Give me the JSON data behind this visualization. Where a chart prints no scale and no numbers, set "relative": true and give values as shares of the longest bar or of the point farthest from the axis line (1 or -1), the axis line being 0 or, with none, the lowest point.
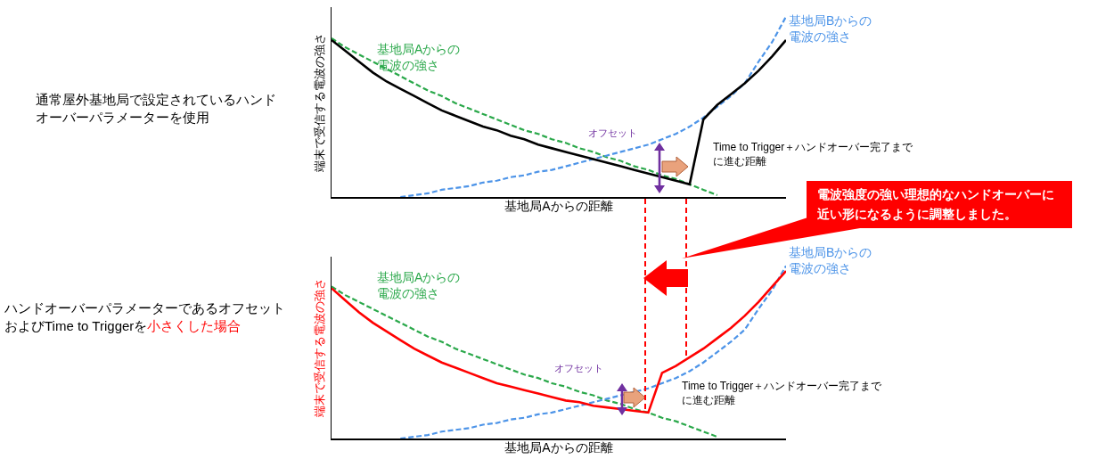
{
  "chart_data": [
    {
      "type": "line",
      "relative": true,
      "xlabel": "基地局Aからの距離",
      "ylabel": "端末で受信する電波の強さ",
      "categories": [
        null,
        null,
        null,
        null,
        null,
        null,
        null,
        null,
        null,
        null,
        null,
        null,
        null,
        null,
        null,
        null,
        null,
        null,
        null,
        null,
        null,
        null,
        null,
        null,
        null,
        null,
        null,
        null,
        null,
        null,
        null,
        null,
        null,
        null
      ],
      "annotations": [
        "通常屋外基地局で設定されているハンドオーバーパラメーターを使用",
        "オフセット",
        "Time to Trigger＋ハンドオーバー完了までに進む距離",
        "電波強度の強い理想的なハンドオーバーに近い形になるように調整しました。"
      ],
      "series": [
        {
          "name": "基地局Aからの電波の強さ",
          "color": "#2aa84a",
          "line_style": "dashed",
          "values": [
            0.88,
            0.83,
            0.79,
            0.75,
            0.71,
            0.67,
            0.63,
            0.59,
            0.56,
            0.52,
            0.49,
            0.46,
            0.43,
            0.4,
            0.37,
            0.35,
            0.32,
            0.3,
            0.27,
            0.25,
            0.22,
            0.2,
            0.17,
            0.15,
            0.12,
            0.1,
            0.07,
            0.04,
            0.01,
            null,
            null,
            null,
            null,
            null
          ]
        },
        {
          "name": "基地局Bからの電波の強さ",
          "color": "#4d94e8",
          "line_style": "dashed",
          "values": [
            null,
            null,
            null,
            null,
            null,
            0,
            0.01,
            0.02,
            0.04,
            0.05,
            0.06,
            0.08,
            0.09,
            0.11,
            0.12,
            0.14,
            0.15,
            0.17,
            0.19,
            0.21,
            0.23,
            0.25,
            0.27,
            0.29,
            0.32,
            0.35,
            0.39,
            0.44,
            0.5,
            0.56,
            0.63,
            0.75,
            0.86,
            1.0
          ]
        },
        {
          "color": "#000000",
          "line_style": "solid",
          "values": [
            0.87,
            0.81,
            0.75,
            0.69,
            0.64,
            0.6,
            0.56,
            0.52,
            0.48,
            0.45,
            0.42,
            0.39,
            0.37,
            0.34,
            0.32,
            0.29,
            0.27,
            0.25,
            0.23,
            0.21,
            0.19,
            0.17,
            0.15,
            0.13,
            0.11,
            0.09,
            0.07,
            0.43,
            0.51,
            0.57,
            0.63,
            0.7,
            0.78,
            0.87
          ]
        }
      ]
    },
    {
      "type": "line",
      "relative": true,
      "xlabel": "基地局Aからの距離",
      "ylabel": "端末で受信する電波の強さ",
      "categories": [
        null,
        null,
        null,
        null,
        null,
        null,
        null,
        null,
        null,
        null,
        null,
        null,
        null,
        null,
        null,
        null,
        null,
        null,
        null,
        null,
        null,
        null,
        null,
        null,
        null,
        null,
        null,
        null,
        null,
        null,
        null,
        null,
        null,
        null
      ],
      "annotations": [
        "ハンドオーバーパラメーターであるオフセットおよびTime to Triggerを",
        "小さくした場合",
        "オフセット",
        "Time to Trigger＋ハンドオーバー完了までに進む距離"
      ],
      "series": [
        {
          "name": "基地局Aからの電波の強さ",
          "color": "#2aa84a",
          "line_style": "dashed",
          "values": [
            0.88,
            0.83,
            0.79,
            0.75,
            0.71,
            0.67,
            0.63,
            0.59,
            0.56,
            0.52,
            0.49,
            0.46,
            0.43,
            0.4,
            0.37,
            0.35,
            0.32,
            0.3,
            0.27,
            0.25,
            0.22,
            0.2,
            0.17,
            0.15,
            0.12,
            0.1,
            0.07,
            0.04,
            0.01,
            null,
            null,
            null,
            null,
            null
          ]
        },
        {
          "name": "基地局Bからの電波の強さ",
          "color": "#4d94e8",
          "line_style": "dashed",
          "values": [
            null,
            null,
            null,
            null,
            null,
            0,
            0.01,
            0.02,
            0.04,
            0.05,
            0.06,
            0.08,
            0.09,
            0.11,
            0.12,
            0.14,
            0.15,
            0.17,
            0.19,
            0.21,
            0.23,
            0.25,
            0.27,
            0.29,
            0.32,
            0.35,
            0.39,
            0.44,
            0.5,
            0.56,
            0.63,
            0.75,
            0.86,
            1.0
          ]
        },
        {
          "color": "#ff0000",
          "line_style": "solid",
          "values": [
            0.87,
            0.8,
            0.73,
            0.67,
            0.62,
            0.57,
            0.52,
            0.48,
            0.44,
            0.41,
            0.38,
            0.35,
            0.32,
            0.3,
            0.28,
            0.26,
            0.24,
            0.22,
            0.21,
            0.19,
            0.18,
            0.17,
            0.16,
            0.15,
            0.38,
            0.42,
            0.47,
            0.52,
            0.58,
            0.64,
            0.71,
            0.79,
            0.88,
            0.97
          ]
        }
      ]
    }
  ]
}
